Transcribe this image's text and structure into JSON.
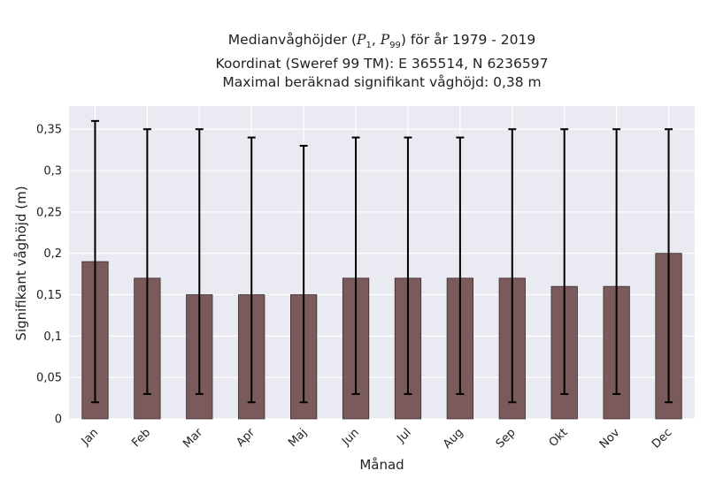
{
  "chart_data": {
    "type": "bar",
    "title_lines": [
      {
        "prefix": "Medianvåghöjder (",
        "p1": "P",
        "p1_sub": "1",
        "sep": ", ",
        "p99": "P",
        "p99_sub": "99",
        "suffix": ") för år 1979 - 2019"
      },
      {
        "text": "Koordinat (Sweref 99 TM): E 365514, N 6236597"
      },
      {
        "text": "Maximal beräknad signifikant våghöjd: 0,38 m"
      }
    ],
    "xlabel": "Månad",
    "ylabel": "Signifikant våghöjd (m)",
    "categories": [
      "Jan",
      "Feb",
      "Mar",
      "Apr",
      "Maj",
      "Jun",
      "Jul",
      "Aug",
      "Sep",
      "Okt",
      "Nov",
      "Dec"
    ],
    "values": [
      0.19,
      0.17,
      0.15,
      0.15,
      0.15,
      0.17,
      0.17,
      0.17,
      0.17,
      0.16,
      0.16,
      0.2
    ],
    "error_low": [
      0.02,
      0.03,
      0.03,
      0.02,
      0.02,
      0.03,
      0.03,
      0.03,
      0.02,
      0.03,
      0.03,
      0.02
    ],
    "error_high": [
      0.36,
      0.35,
      0.35,
      0.34,
      0.33,
      0.34,
      0.34,
      0.34,
      0.35,
      0.35,
      0.35,
      0.35
    ],
    "yticks": [
      0,
      0.05,
      0.1,
      0.15,
      0.2,
      0.25,
      0.3,
      0.35
    ],
    "ytick_labels": [
      "0",
      "0,05",
      "0,1",
      "0,15",
      "0,2",
      "0,25",
      "0,3",
      "0,35"
    ],
    "ylim": [
      0,
      0.378
    ],
    "grid": true,
    "bar_color": "#7a5a5a",
    "bar_edge_color": "#3c2c2c",
    "plot_bg": "#eaeaf2",
    "errorbar_color": "#000000"
  }
}
